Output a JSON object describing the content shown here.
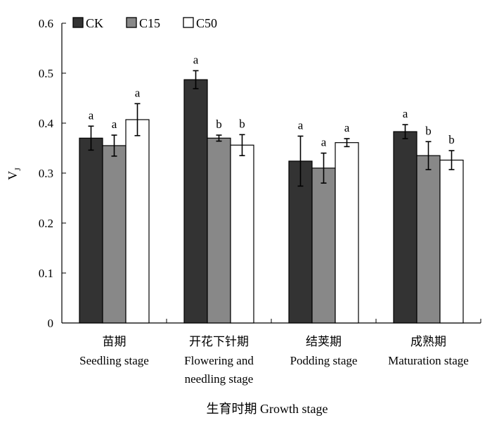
{
  "chart_data": {
    "type": "bar",
    "ylabel": "V",
    "ylabel_sub": "J",
    "xlabel": "生育时期 Growth stage",
    "ylim": [
      0,
      0.6
    ],
    "yticks": [
      "0",
      "0.1",
      "0.2",
      "0.3",
      "0.4",
      "0.5",
      "0.6"
    ],
    "categories": [
      {
        "zh": "苗期",
        "en": [
          "Seedling stage"
        ]
      },
      {
        "zh": "开花下针期",
        "en": [
          "Flowering and",
          "needling stage"
        ]
      },
      {
        "zh": "结荚期",
        "en": [
          "Podding stage"
        ]
      },
      {
        "zh": "成熟期",
        "en": [
          "Maturation stage"
        ]
      }
    ],
    "series": [
      {
        "name": "CK",
        "color": "#333333",
        "values": [
          0.37,
          0.487,
          0.324,
          0.383
        ],
        "errors": [
          0.024,
          0.018,
          0.05,
          0.014
        ],
        "sig": [
          "a",
          "a",
          "a",
          "a"
        ]
      },
      {
        "name": "C15",
        "color": "#888888",
        "values": [
          0.355,
          0.37,
          0.31,
          0.335
        ],
        "errors": [
          0.021,
          0.006,
          0.03,
          0.028
        ],
        "sig": [
          "a",
          "b",
          "a",
          "b"
        ]
      },
      {
        "name": "C50",
        "color": "#ffffff",
        "values": [
          0.407,
          0.356,
          0.361,
          0.326
        ],
        "errors": [
          0.032,
          0.021,
          0.008,
          0.019
        ],
        "sig": [
          "a",
          "b",
          "a",
          "b"
        ]
      }
    ],
    "legend": "top-left",
    "grid": false
  }
}
